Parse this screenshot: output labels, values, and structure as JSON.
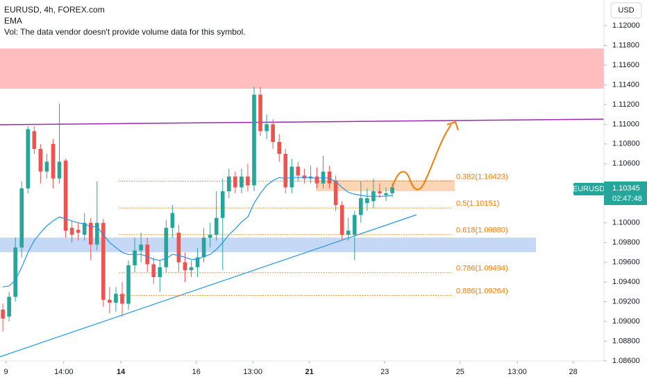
{
  "header": {
    "symbol": "EURUSD, 4h, FOREX.com",
    "indicator": "EMA",
    "volume_note": "Vol: The data vendor doesn't provide volume data for this symbol.",
    "currency": "USD"
  },
  "price_tag": {
    "symbol": "EURUSD",
    "price": 1.10345,
    "countdown": "02:47:48"
  },
  "chart_data": {
    "type": "candlestick",
    "up_color": "#26a69a",
    "down_color": "#ef5350",
    "ema_color": "#2196f3",
    "xlim": [
      -0.45,
      95.7
    ],
    "ylim": [
      1.086,
      1.1226
    ],
    "xticks": [
      {
        "value": 0.5,
        "label": "9"
      },
      {
        "value": 9.7,
        "label": "14:00"
      },
      {
        "value": 18.8,
        "label": "14"
      },
      {
        "value": 30.8,
        "label": "16"
      },
      {
        "value": 39.8,
        "label": "13:00"
      },
      {
        "value": 48.8,
        "label": "21"
      },
      {
        "value": 60.8,
        "label": "23"
      },
      {
        "value": 72.8,
        "label": "25"
      },
      {
        "value": 81.9,
        "label": "13:00"
      },
      {
        "value": 90.8,
        "label": "28"
      }
    ],
    "yticks": [
      {
        "value": 1.086,
        "label": "1.08600"
      },
      {
        "value": 1.088,
        "label": "1.08800"
      },
      {
        "value": 1.09,
        "label": "1.09000"
      },
      {
        "value": 1.092,
        "label": "1.09200"
      },
      {
        "value": 1.094,
        "label": "1.09400"
      },
      {
        "value": 1.096,
        "label": "1.09600"
      },
      {
        "value": 1.098,
        "label": "1.09800"
      },
      {
        "value": 1.1,
        "label": "1.10000"
      },
      {
        "value": 1.102,
        "label": "1.10200"
      },
      {
        "value": 1.106,
        "label": "1.10600"
      },
      {
        "value": 1.108,
        "label": "1.10800"
      },
      {
        "value": 1.11,
        "label": "1.11000"
      },
      {
        "value": 1.112,
        "label": "1.11200"
      },
      {
        "value": 1.114,
        "label": "1.11400"
      },
      {
        "value": 1.116,
        "label": "1.11600"
      },
      {
        "value": 1.118,
        "label": "1.11800"
      },
      {
        "value": 1.12,
        "label": "1.12000"
      }
    ],
    "open": [
      1.0912,
      1.0905,
      1.0925,
      1.0975,
      1.1035,
      1.1093,
      1.1075,
      1.1052,
      1.108,
      1.1045,
      1.1063,
      1.0995,
      1.0993,
      1.0988,
      1.1,
      1.0978,
      1.1,
      1.0922,
      1.0919,
      1.0928,
      1.0918,
      1.0957,
      1.0972,
      1.0978,
      1.0958,
      1.0945,
      1.0955,
      1.0995,
      1.099,
      1.096,
      1.0952,
      1.0955,
      1.0965,
      1.0985,
      1.0988,
      1.1005,
      1.1032,
      1.1047,
      1.1036,
      1.1047,
      1.1038,
      1.113,
      1.1093,
      1.11,
      1.1082,
      1.107,
      1.1036,
      1.1057,
      1.1048,
      1.1045,
      1.1047,
      1.104,
      1.1052,
      1.1043,
      1.1018,
      1.0988,
      1.0988,
      1.1008,
      1.102,
      1.1022,
      1.1032,
      1.1028,
      1.103
    ],
    "high": [
      1.0918,
      1.093,
      1.0985,
      1.1042,
      1.1098,
      1.1098,
      1.108,
      1.107,
      1.1085,
      1.1121,
      1.1065,
      1.1002,
      1.1,
      1.101,
      1.1005,
      1.1042,
      1.1004,
      1.0935,
      1.0935,
      1.094,
      1.0962,
      1.0985,
      1.099,
      1.0985,
      1.0965,
      1.0962,
      1.1003,
      1.1018,
      1.0998,
      1.097,
      1.0962,
      1.0975,
      1.0995,
      1.1,
      1.1032,
      1.1045,
      1.1055,
      1.1052,
      1.1055,
      1.106,
      1.1138,
      1.1138,
      1.111,
      1.1105,
      1.109,
      1.1075,
      1.1065,
      1.1062,
      1.1055,
      1.1058,
      1.1056,
      1.1068,
      1.1058,
      1.1048,
      1.1022,
      1.1005,
      1.1012,
      1.1042,
      1.1035,
      1.1045,
      1.104,
      1.1036,
      1.104
    ],
    "low": [
      1.089,
      1.09,
      1.092,
      1.0965,
      1.103,
      1.107,
      1.104,
      1.1045,
      1.1035,
      1.104,
      1.0985,
      1.098,
      1.0982,
      1.0982,
      1.0962,
      1.0972,
      1.0915,
      1.0908,
      1.091,
      1.0905,
      1.0912,
      1.095,
      1.096,
      1.095,
      1.0938,
      1.093,
      1.095,
      1.0985,
      1.095,
      1.094,
      1.0945,
      1.0945,
      1.096,
      1.0975,
      1.0982,
      1.0952,
      1.1025,
      1.103,
      1.103,
      1.1032,
      1.1032,
      1.1088,
      1.1085,
      1.1075,
      1.1062,
      1.103,
      1.103,
      1.1042,
      1.104,
      1.104,
      1.1035,
      1.1035,
      1.1035,
      1.1012,
      1.0982,
      1.0982,
      1.0962,
      1.1,
      1.1012,
      1.1015,
      1.1025,
      1.1022,
      1.1026
    ],
    "close": [
      1.0903,
      1.0925,
      1.0975,
      1.1035,
      1.1095,
      1.1075,
      1.1052,
      1.1062,
      1.1045,
      1.1062,
      1.0992,
      1.0988,
      1.099,
      1.1,
      1.0978,
      1.1,
      1.0922,
      1.0919,
      1.0928,
      1.0918,
      1.0957,
      1.0972,
      1.0978,
      1.0958,
      1.0945,
      1.0955,
      1.0995,
      1.101,
      1.096,
      1.0952,
      1.0955,
      1.0965,
      1.0985,
      1.0988,
      1.1005,
      1.1032,
      1.1047,
      1.1036,
      1.1047,
      1.1038,
      1.113,
      1.1093,
      1.11,
      1.1082,
      1.107,
      1.1036,
      1.1057,
      1.1048,
      1.1045,
      1.1047,
      1.104,
      1.1052,
      1.104,
      1.1018,
      1.0988,
      1.0992,
      1.1008,
      1.1025,
      1.1025,
      1.1032,
      1.103,
      1.103,
      1.1036
    ],
    "ema": [
      1.0935,
      1.0936,
      1.0942,
      1.0955,
      1.097,
      1.0982,
      1.099,
      1.0997,
      1.1002,
      1.1006,
      1.1004,
      1.1002,
      1.1,
      1.0999,
      1.0996,
      1.0996,
      1.0988,
      1.098,
      1.0975,
      1.097,
      1.0968,
      1.0968,
      1.0968,
      1.0966,
      1.0963,
      1.0962,
      1.0964,
      1.0968,
      1.0967,
      1.0965,
      1.0963,
      1.0963,
      1.0966,
      1.0968,
      1.0973,
      1.098,
      1.0988,
      1.0994,
      1.1001,
      1.1006,
      1.102,
      1.103,
      1.1038,
      1.1043,
      1.1046,
      1.1045,
      1.1046,
      1.1046,
      1.1046,
      1.1046,
      1.1045,
      1.1046,
      1.1045,
      1.1042,
      1.1036,
      1.1031,
      1.1029,
      1.1028,
      1.1027,
      1.1027,
      1.1027,
      1.1027,
      1.1028
    ],
    "fib_levels": [
      {
        "label": "0.382(1.10423)",
        "value": 1.10423
      },
      {
        "label": "0.5(1.10151)",
        "value": 1.10151
      },
      {
        "label": "0.618(1.09880)",
        "value": 1.0988
      },
      {
        "label": "0.786(1.09494)",
        "value": 1.09494
      },
      {
        "label": "0.886(1.09264)",
        "value": 1.09264
      }
    ]
  }
}
